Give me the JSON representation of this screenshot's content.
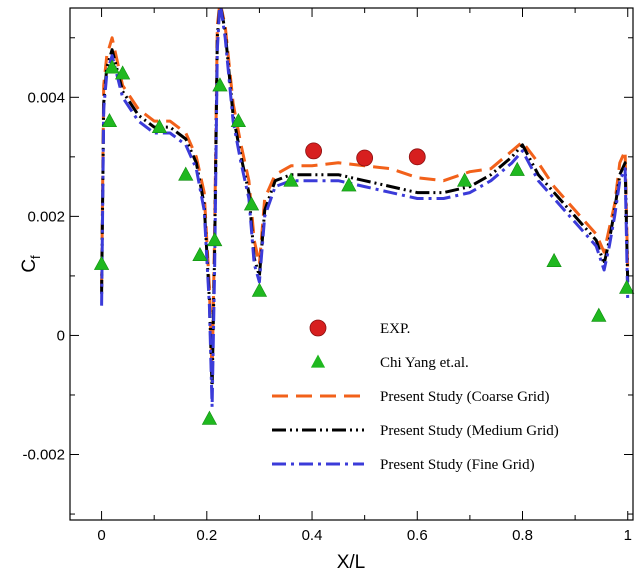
{
  "chart_data": {
    "type": "line",
    "xlabel": "X/L",
    "ylabel": "C",
    "ylabel_sub": "f",
    "xlim": [
      -0.06,
      1.01
    ],
    "ylim": [
      -0.0031,
      0.0055
    ],
    "xticks": [
      0,
      0.2,
      0.4,
      0.6,
      0.8,
      1
    ],
    "xtick_labels": [
      "0",
      "0.2",
      "0.4",
      "0.6",
      "0.8",
      "1"
    ],
    "yticks": [
      -0.002,
      0,
      0.002,
      0.004
    ],
    "ytick_labels": [
      "-0.002",
      "0",
      "0.002",
      "0.004"
    ],
    "grid": false,
    "legend_position": "lower-right",
    "series": [
      {
        "name": "EXP.",
        "kind": "marker",
        "marker": "circle",
        "color": "#d71f1f",
        "x": [
          0.403,
          0.5,
          0.6
        ],
        "y": [
          0.0031,
          0.00298,
          0.003
        ]
      },
      {
        "name": "Chi Yang et.al.",
        "kind": "marker",
        "marker": "triangle",
        "color": "#1fb81f",
        "x": [
          0.0,
          0.015,
          0.02,
          0.04,
          0.11,
          0.16,
          0.187,
          0.205,
          0.215,
          0.225,
          0.26,
          0.285,
          0.3,
          0.36,
          0.47,
          0.69,
          0.79,
          0.86,
          0.945,
          0.998
        ],
        "y": [
          0.0012,
          0.0036,
          0.0045,
          0.0044,
          0.0035,
          0.0027,
          0.00135,
          -0.0014,
          0.0016,
          0.0042,
          0.0036,
          0.0022,
          0.00075,
          0.0026,
          0.00252,
          0.0026,
          0.00278,
          0.00125,
          0.00033,
          0.0008
        ]
      },
      {
        "name": "Present Study (Coarse Grid)",
        "kind": "line",
        "dash": "dashed",
        "color": "#f2611a",
        "x": [
          0.0,
          0.004,
          0.01,
          0.02,
          0.04,
          0.07,
          0.1,
          0.13,
          0.16,
          0.18,
          0.195,
          0.205,
          0.21,
          0.215,
          0.22,
          0.225,
          0.235,
          0.25,
          0.265,
          0.28,
          0.29,
          0.3,
          0.31,
          0.33,
          0.36,
          0.4,
          0.45,
          0.5,
          0.55,
          0.6,
          0.65,
          0.7,
          0.74,
          0.78,
          0.8,
          0.83,
          0.86,
          0.9,
          0.94,
          0.955,
          0.965,
          0.975,
          0.985,
          0.995,
          1.0
        ],
        "y": [
          0.0008,
          0.0042,
          0.0047,
          0.005,
          0.0042,
          0.0038,
          0.0036,
          0.0036,
          0.0034,
          0.003,
          0.0024,
          0.0008,
          -0.0007,
          0.0018,
          0.0052,
          0.0056,
          0.0052,
          0.0039,
          0.0032,
          0.0026,
          0.0016,
          0.0012,
          0.0023,
          0.0027,
          0.00285,
          0.00285,
          0.0029,
          0.00285,
          0.0028,
          0.00265,
          0.0026,
          0.00275,
          0.0028,
          0.0031,
          0.00325,
          0.0029,
          0.0025,
          0.0021,
          0.0017,
          0.0014,
          0.0018,
          0.0022,
          0.0029,
          0.0031,
          0.0011
        ]
      },
      {
        "name": "Present Study (Medium Grid)",
        "kind": "line",
        "dash": "dash-dot-dot",
        "color": "#000000",
        "x": [
          0.0,
          0.004,
          0.01,
          0.02,
          0.04,
          0.07,
          0.1,
          0.13,
          0.16,
          0.18,
          0.195,
          0.205,
          0.21,
          0.215,
          0.22,
          0.225,
          0.235,
          0.25,
          0.265,
          0.28,
          0.29,
          0.3,
          0.31,
          0.33,
          0.36,
          0.4,
          0.45,
          0.5,
          0.55,
          0.6,
          0.65,
          0.7,
          0.74,
          0.78,
          0.8,
          0.83,
          0.86,
          0.9,
          0.94,
          0.955,
          0.965,
          0.975,
          0.985,
          0.995,
          1.0
        ],
        "y": [
          0.0007,
          0.0039,
          0.0045,
          0.0048,
          0.0041,
          0.0037,
          0.0035,
          0.0035,
          0.0033,
          0.0029,
          0.0022,
          0.0006,
          -0.0009,
          0.0015,
          0.005,
          0.0056,
          0.0051,
          0.0037,
          0.003,
          0.0024,
          0.0013,
          0.001,
          0.0021,
          0.0026,
          0.0027,
          0.0027,
          0.0027,
          0.0026,
          0.0025,
          0.0024,
          0.0024,
          0.0025,
          0.0027,
          0.003,
          0.0032,
          0.0027,
          0.0024,
          0.002,
          0.0016,
          0.0012,
          0.0016,
          0.0021,
          0.0027,
          0.0029,
          0.0009
        ]
      },
      {
        "name": "Present Study (Fine Grid)",
        "kind": "line",
        "dash": "dash-dot",
        "color": "#3b3bd9",
        "x": [
          0.0,
          0.004,
          0.01,
          0.02,
          0.04,
          0.07,
          0.1,
          0.13,
          0.16,
          0.18,
          0.195,
          0.205,
          0.21,
          0.215,
          0.22,
          0.225,
          0.235,
          0.25,
          0.265,
          0.28,
          0.29,
          0.3,
          0.31,
          0.33,
          0.36,
          0.4,
          0.45,
          0.5,
          0.55,
          0.6,
          0.65,
          0.7,
          0.74,
          0.78,
          0.8,
          0.83,
          0.86,
          0.9,
          0.94,
          0.955,
          0.965,
          0.975,
          0.985,
          0.995,
          1.0
        ],
        "y": [
          0.0005,
          0.0038,
          0.0044,
          0.0047,
          0.004,
          0.0036,
          0.0034,
          0.0034,
          0.0032,
          0.0028,
          0.0021,
          0.0005,
          -0.0012,
          0.0012,
          0.0048,
          0.0056,
          0.005,
          0.0036,
          0.0029,
          0.0023,
          0.0012,
          0.0009,
          0.002,
          0.0025,
          0.0026,
          0.0026,
          0.0026,
          0.0025,
          0.0024,
          0.0023,
          0.0023,
          0.0024,
          0.0026,
          0.0029,
          0.0031,
          0.0026,
          0.0023,
          0.0019,
          0.0015,
          0.0011,
          0.0015,
          0.002,
          0.0026,
          0.0028,
          0.0006
        ]
      }
    ]
  }
}
